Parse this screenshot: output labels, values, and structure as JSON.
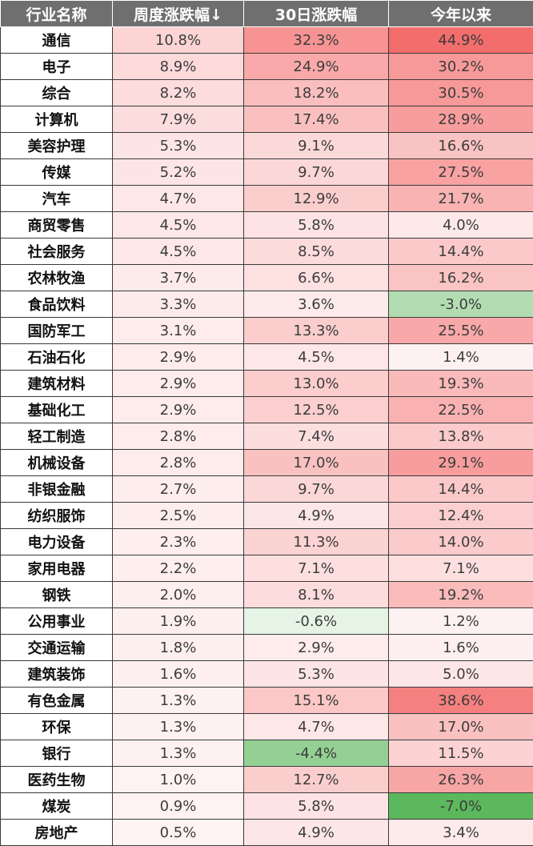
{
  "chart_data": {
    "type": "table",
    "columns": [
      "行业名称",
      "周度涨跌幅↓",
      "30日涨跌幅",
      "今年以来"
    ],
    "rows": [
      {
        "name": "通信",
        "weekly": "10.8%",
        "d30": "32.3%",
        "ytd": "44.9%"
      },
      {
        "name": "电子",
        "weekly": "8.9%",
        "d30": "24.9%",
        "ytd": "30.2%"
      },
      {
        "name": "综合",
        "weekly": "8.2%",
        "d30": "18.2%",
        "ytd": "30.5%"
      },
      {
        "name": "计算机",
        "weekly": "7.9%",
        "d30": "17.4%",
        "ytd": "28.9%"
      },
      {
        "name": "美容护理",
        "weekly": "5.3%",
        "d30": "9.1%",
        "ytd": "16.6%"
      },
      {
        "name": "传媒",
        "weekly": "5.2%",
        "d30": "9.7%",
        "ytd": "27.5%"
      },
      {
        "name": "汽车",
        "weekly": "4.7%",
        "d30": "12.9%",
        "ytd": "21.7%"
      },
      {
        "name": "商贸零售",
        "weekly": "4.5%",
        "d30": "5.8%",
        "ytd": "4.0%"
      },
      {
        "name": "社会服务",
        "weekly": "4.5%",
        "d30": "8.5%",
        "ytd": "14.4%"
      },
      {
        "name": "农林牧渔",
        "weekly": "3.7%",
        "d30": "6.6%",
        "ytd": "16.2%"
      },
      {
        "name": "食品饮料",
        "weekly": "3.3%",
        "d30": "3.6%",
        "ytd": "-3.0%"
      },
      {
        "name": "国防军工",
        "weekly": "3.1%",
        "d30": "13.3%",
        "ytd": "25.5%"
      },
      {
        "name": "石油石化",
        "weekly": "2.9%",
        "d30": "4.5%",
        "ytd": "1.4%"
      },
      {
        "name": "建筑材料",
        "weekly": "2.9%",
        "d30": "13.0%",
        "ytd": "19.3%"
      },
      {
        "name": "基础化工",
        "weekly": "2.9%",
        "d30": "12.5%",
        "ytd": "22.5%"
      },
      {
        "name": "轻工制造",
        "weekly": "2.8%",
        "d30": "7.4%",
        "ytd": "13.8%"
      },
      {
        "name": "机械设备",
        "weekly": "2.8%",
        "d30": "17.0%",
        "ytd": "29.1%"
      },
      {
        "name": "非银金融",
        "weekly": "2.7%",
        "d30": "9.7%",
        "ytd": "14.4%"
      },
      {
        "name": "纺织服饰",
        "weekly": "2.5%",
        "d30": "4.9%",
        "ytd": "12.4%"
      },
      {
        "name": "电力设备",
        "weekly": "2.3%",
        "d30": "11.3%",
        "ytd": "14.0%"
      },
      {
        "name": "家用电器",
        "weekly": "2.2%",
        "d30": "7.1%",
        "ytd": "7.1%"
      },
      {
        "name": "钢铁",
        "weekly": "2.0%",
        "d30": "8.1%",
        "ytd": "19.2%"
      },
      {
        "name": "公用事业",
        "weekly": "1.9%",
        "d30": "-0.6%",
        "ytd": "1.2%"
      },
      {
        "name": "交通运输",
        "weekly": "1.8%",
        "d30": "2.9%",
        "ytd": "1.6%"
      },
      {
        "name": "建筑装饰",
        "weekly": "1.6%",
        "d30": "5.3%",
        "ytd": "5.0%"
      },
      {
        "name": "有色金属",
        "weekly": "1.3%",
        "d30": "15.1%",
        "ytd": "38.6%"
      },
      {
        "name": "环保",
        "weekly": "1.3%",
        "d30": "4.7%",
        "ytd": "17.0%"
      },
      {
        "name": "银行",
        "weekly": "1.3%",
        "d30": "-4.4%",
        "ytd": "11.5%"
      },
      {
        "name": "医药生物",
        "weekly": "1.0%",
        "d30": "12.7%",
        "ytd": "26.3%"
      },
      {
        "name": "煤炭",
        "weekly": "0.9%",
        "d30": "5.8%",
        "ytd": "-7.0%"
      },
      {
        "name": "房地产",
        "weekly": "0.5%",
        "d30": "4.9%",
        "ytd": "3.4%"
      }
    ],
    "colors": {
      "header_bg": "#6f6f6f",
      "positive": "#f46d6d",
      "negative": "#5cb85c",
      "neutral": "#ffffff"
    }
  }
}
